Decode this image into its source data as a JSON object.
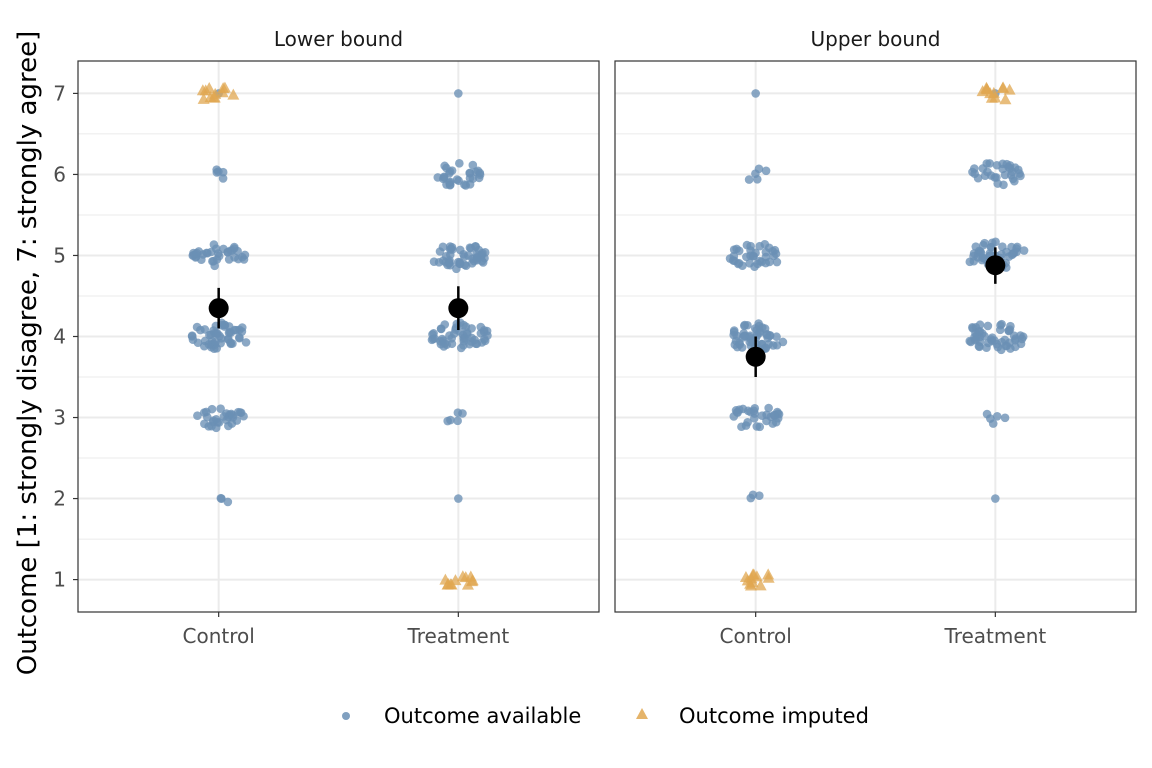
{
  "chart_data": {
    "type": "scatter",
    "subtype": "beeswarm-with-mean-and-ci",
    "ylabel": "Outcome [1: strongly disagree, 7: strongly agree]",
    "xlabel": "",
    "categories": [
      "Control",
      "Treatment"
    ],
    "ylim": [
      0.6,
      7.4
    ],
    "yticks": [
      1,
      2,
      3,
      4,
      5,
      6,
      7
    ],
    "grid": true,
    "legend": {
      "position": "bottom",
      "entries": [
        {
          "name": "Outcome available",
          "shape": "circle",
          "color": "#6a8fb5"
        },
        {
          "name": "Outcome imputed",
          "shape": "triangle",
          "color": "#e0a750"
        }
      ]
    },
    "panels": [
      {
        "title": "Lower bound",
        "groups": [
          {
            "category": "Control",
            "available_counts": {
              "1": 0,
              "2": 3,
              "3": 30,
              "4": 50,
              "5": 35,
              "6": 5,
              "7": 1
            },
            "imputed_counts": {
              "7": 12
            },
            "mean": 4.35,
            "ci": [
              4.1,
              4.6
            ]
          },
          {
            "category": "Treatment",
            "available_counts": {
              "1": 0,
              "2": 1,
              "3": 5,
              "4": 50,
              "5": 48,
              "6": 30,
              "7": 1
            },
            "imputed_counts": {
              "1": 12
            },
            "mean": 4.35,
            "ci": [
              4.08,
              4.62
            ]
          }
        ]
      },
      {
        "title": "Upper bound",
        "groups": [
          {
            "category": "Control",
            "available_counts": {
              "1": 0,
              "2": 3,
              "3": 30,
              "4": 50,
              "5": 35,
              "6": 5,
              "7": 1
            },
            "imputed_counts": {
              "1": 12
            },
            "mean": 3.75,
            "ci": [
              3.5,
              4.0
            ]
          },
          {
            "category": "Treatment",
            "available_counts": {
              "1": 0,
              "2": 1,
              "3": 5,
              "4": 50,
              "5": 48,
              "6": 30,
              "7": 1
            },
            "imputed_counts": {
              "7": 12
            },
            "mean": 4.88,
            "ci": [
              4.65,
              5.1
            ]
          }
        ]
      }
    ]
  },
  "colors": {
    "available": "#6a8fb5",
    "imputed": "#e0a750",
    "mean": "#000000",
    "grid": "#ebebeb",
    "panel_border": "#333333"
  }
}
